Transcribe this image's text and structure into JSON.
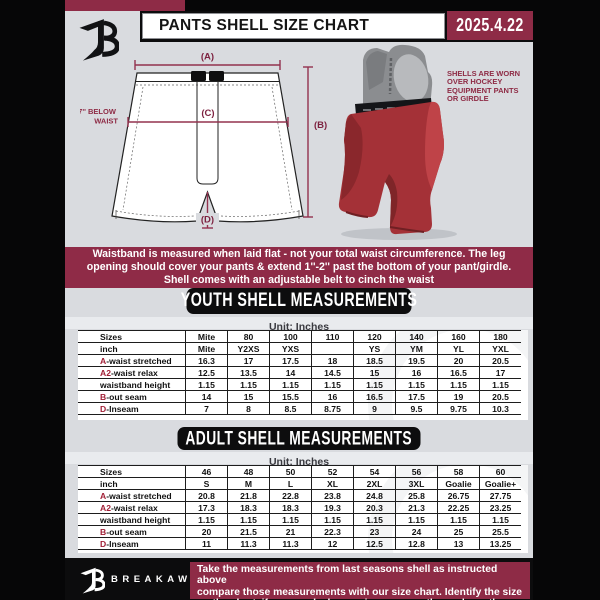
{
  "header": {
    "title": "PANTS SHELL SIZE CHART",
    "date": "2025.4.22"
  },
  "diagram": {
    "a": "(A)",
    "b": "(B)",
    "c": "(C)",
    "d": "(D)",
    "waist_note": "7'' BELOW\nWAIST",
    "photo_note": "SHELLS ARE WORN\nOVER HOCKEY\nEQUIPMENT PANTS\nOR GIRDLE"
  },
  "banner": "Waistband is measured when laid flat - not your total waist circumference. The leg\nopening should cover your pants & extend 1''-2'' past the bottom of your pant/girdle.\nShell comes with an adjustable belt to cinch the waist",
  "youth": {
    "heading": "YOUTH SHELL MEASUREMENTS",
    "unit": "Unit: Inches",
    "rows": [
      {
        "prefix": "",
        "label": "Sizes",
        "values": [
          "Mite",
          "80",
          "100",
          "110",
          "120",
          "140",
          "160",
          "180"
        ]
      },
      {
        "prefix": "",
        "label": "inch",
        "values": [
          "Mite",
          "Y2XS",
          "YXS",
          "",
          "YS",
          "YM",
          "YL",
          "YXL"
        ]
      },
      {
        "prefix": "A",
        "label": "-waist stretched",
        "values": [
          "16.3",
          "17",
          "17.5",
          "18",
          "18.5",
          "19.5",
          "20",
          "20.5"
        ]
      },
      {
        "prefix": "A2",
        "label": "-waist relax",
        "values": [
          "12.5",
          "13.5",
          "14",
          "14.5",
          "15",
          "16",
          "16.5",
          "17"
        ]
      },
      {
        "prefix": "",
        "label": "waistband height",
        "values": [
          "1.15",
          "1.15",
          "1.15",
          "1.15",
          "1.15",
          "1.15",
          "1.15",
          "1.15"
        ]
      },
      {
        "prefix": "B",
        "label": "-out seam",
        "values": [
          "14",
          "15",
          "15.5",
          "16",
          "16.5",
          "17.5",
          "19",
          "20.5"
        ]
      },
      {
        "prefix": "D",
        "label": "-Inseam",
        "values": [
          "7",
          "8",
          "8.5",
          "8.75",
          "9",
          "9.5",
          "9.75",
          "10.3"
        ]
      }
    ]
  },
  "adult": {
    "heading": "ADULT SHELL MEASUREMENTS",
    "unit": "Unit: Inches",
    "rows": [
      {
        "prefix": "",
        "label": "Sizes",
        "values": [
          "46",
          "48",
          "50",
          "52",
          "54",
          "56",
          "58",
          "60"
        ]
      },
      {
        "prefix": "",
        "label": "inch",
        "values": [
          "S",
          "M",
          "L",
          "XL",
          "2XL",
          "3XL",
          "Goalie",
          "Goalie+"
        ]
      },
      {
        "prefix": "A",
        "label": "-waist stretched",
        "values": [
          "20.8",
          "21.8",
          "22.8",
          "23.8",
          "24.8",
          "25.8",
          "26.75",
          "27.75"
        ]
      },
      {
        "prefix": "A2",
        "label": "-waist relax",
        "values": [
          "17.3",
          "18.3",
          "18.3",
          "19.3",
          "20.3",
          "21.3",
          "22.25",
          "23.25"
        ]
      },
      {
        "prefix": "",
        "label": "waistband height",
        "values": [
          "1.15",
          "1.15",
          "1.15",
          "1.15",
          "1.15",
          "1.15",
          "1.15",
          "1.15"
        ]
      },
      {
        "prefix": "B",
        "label": "-out seam",
        "values": [
          "20",
          "21.5",
          "21",
          "22.3",
          "23",
          "24",
          "25",
          "25.5"
        ]
      },
      {
        "prefix": "D",
        "label": "-Inseam",
        "values": [
          "11",
          "11.3",
          "11.3",
          "12",
          "12.5",
          "12.8",
          "13",
          "13.25"
        ]
      }
    ]
  },
  "footer": {
    "brand": "BREAKAWAY",
    "note": "Take the measurements from last seasons shell as instructed above\ncompare those measurements  with our size chart. Identify the size\non the chart, if you need a larger size move up the scale on the chart"
  },
  "colors": {
    "maroon": "#8e2b46",
    "black": "#0c0c0d",
    "page_gray": "#d9dbdf",
    "shell_red": "#a43137",
    "label_red": "#a11f36"
  }
}
